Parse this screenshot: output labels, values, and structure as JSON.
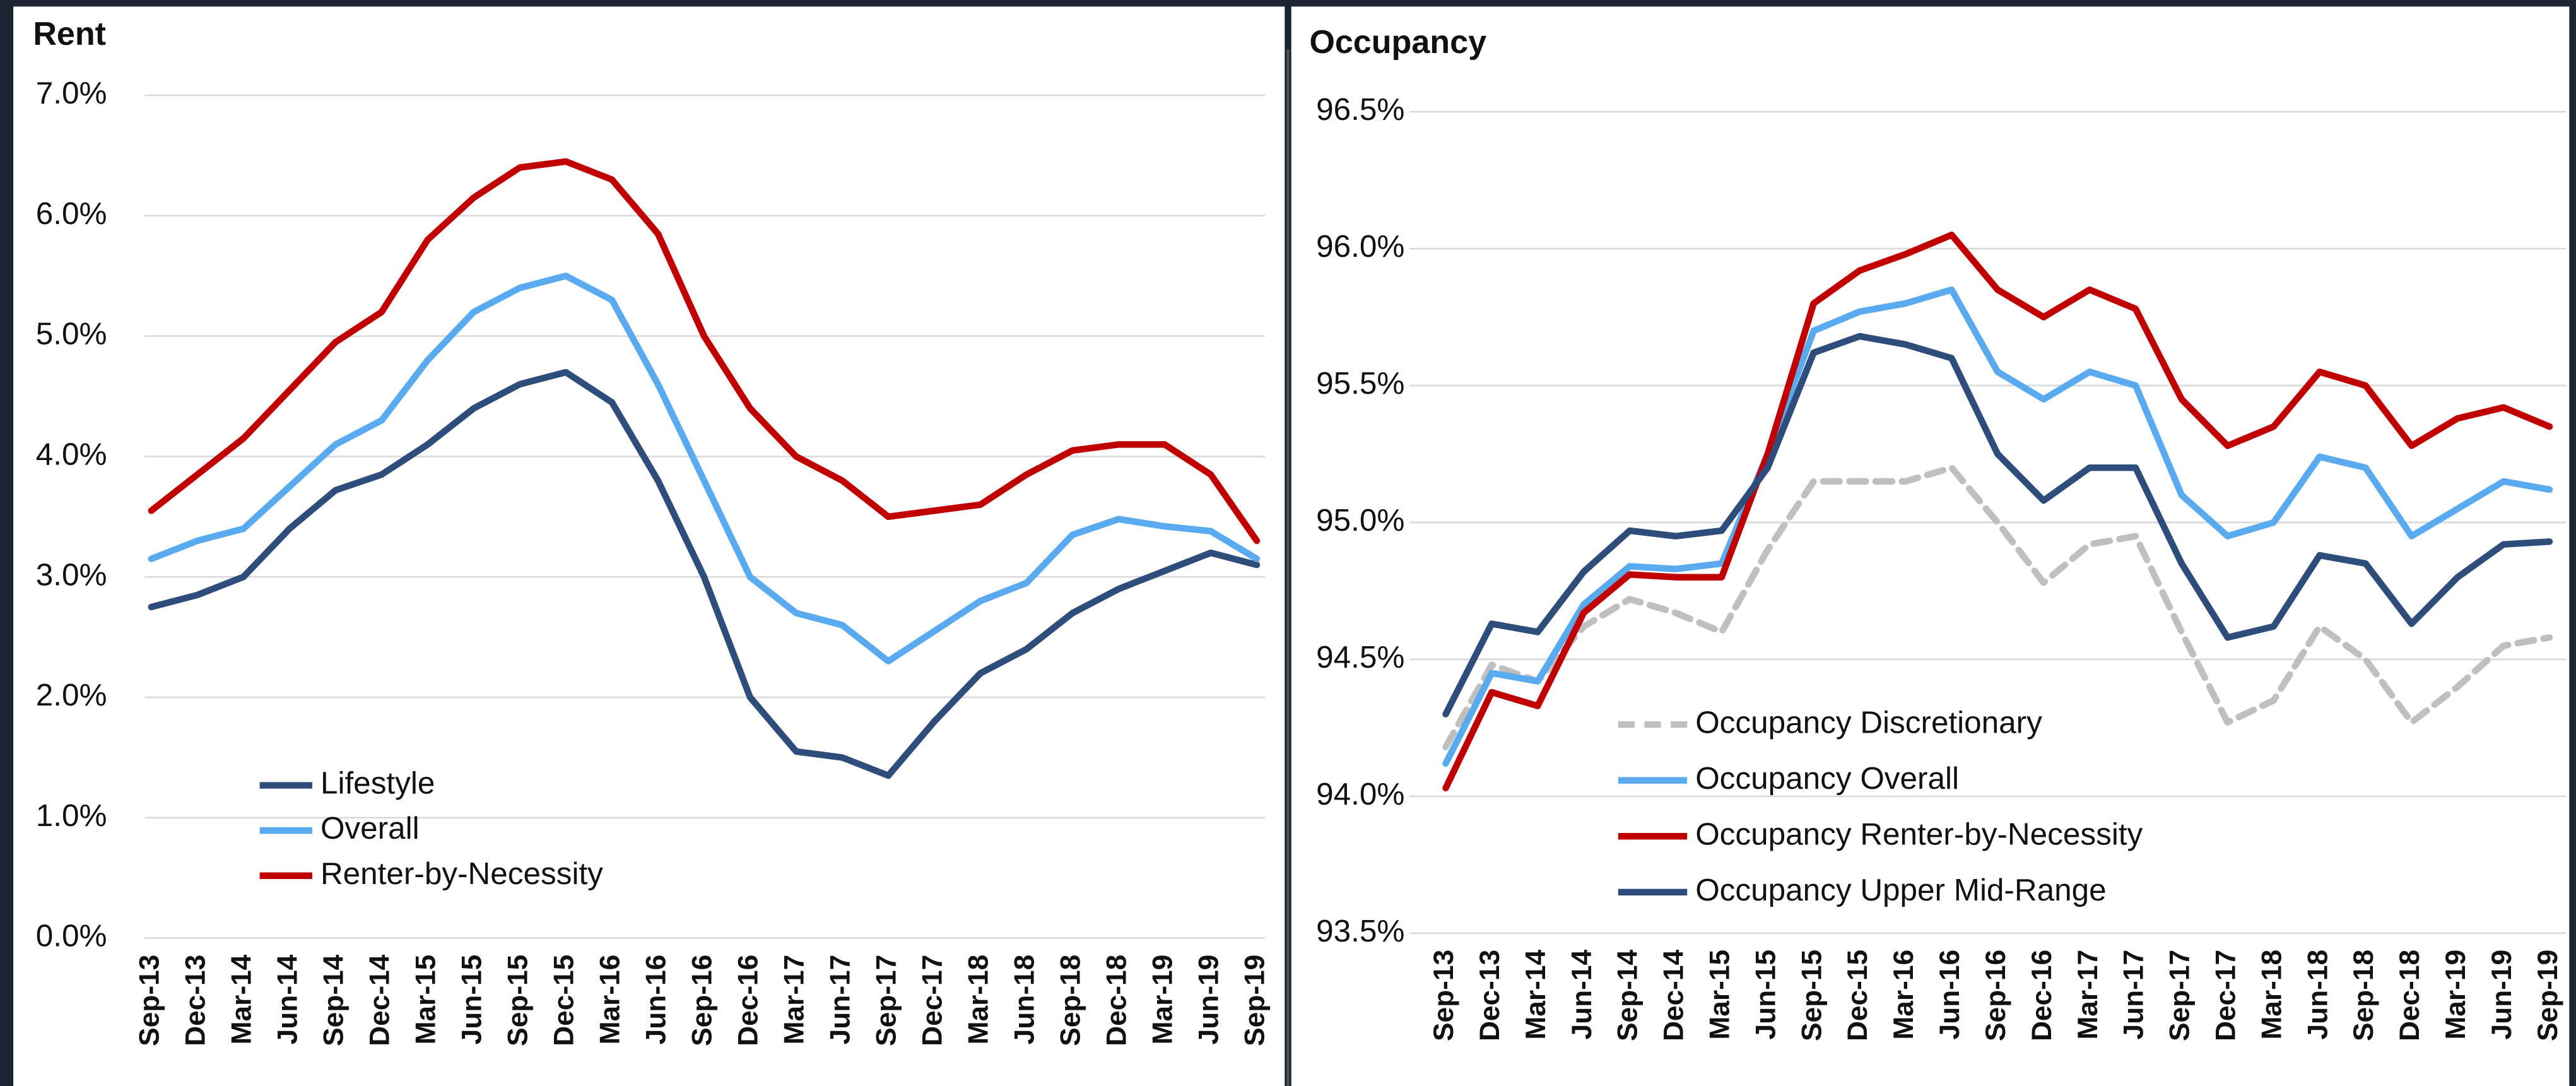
{
  "chart_data": [
    {
      "type": "line",
      "title": "Rent",
      "categories": [
        "Sep-13",
        "Dec-13",
        "Mar-14",
        "Jun-14",
        "Sep-14",
        "Dec-14",
        "Mar-15",
        "Jun-15",
        "Sep-15",
        "Dec-15",
        "Mar-16",
        "Jun-16",
        "Sep-16",
        "Dec-16",
        "Mar-17",
        "Jun-17",
        "Sep-17",
        "Dec-17",
        "Mar-18",
        "Jun-18",
        "Sep-18",
        "Dec-18",
        "Mar-19",
        "Jun-19",
        "Sep-19"
      ],
      "series": [
        {
          "name": "Lifestyle",
          "color": "#2e4d7b",
          "values": [
            2.75,
            2.85,
            3.0,
            3.4,
            3.72,
            3.85,
            4.1,
            4.4,
            4.6,
            4.7,
            4.45,
            3.8,
            3.0,
            2.0,
            1.55,
            1.5,
            1.35,
            1.8,
            2.2,
            2.4,
            2.7,
            2.9,
            3.05,
            3.2,
            3.1
          ]
        },
        {
          "name": "Overall",
          "color": "#5aaaf0",
          "values": [
            3.15,
            3.3,
            3.4,
            3.75,
            4.1,
            4.3,
            4.8,
            5.2,
            5.4,
            5.5,
            5.3,
            4.6,
            3.8,
            3.0,
            2.7,
            2.6,
            2.3,
            2.55,
            2.8,
            2.95,
            3.35,
            3.48,
            3.42,
            3.38,
            3.15
          ]
        },
        {
          "name": "Renter-by-Necessity",
          "color": "#c00000",
          "values": [
            3.55,
            3.85,
            4.15,
            4.55,
            4.95,
            5.2,
            5.8,
            6.15,
            6.4,
            6.45,
            6.3,
            5.85,
            5.0,
            4.4,
            4.0,
            3.8,
            3.5,
            3.55,
            3.6,
            3.85,
            4.05,
            4.1,
            4.1,
            3.85,
            3.3
          ]
        }
      ],
      "ylim": [
        0,
        7
      ],
      "yticks": [
        {
          "value": 0,
          "label": "0.0%"
        },
        {
          "value": 1,
          "label": "1.0%"
        },
        {
          "value": 2,
          "label": "2.0%"
        },
        {
          "value": 3,
          "label": "3.0%"
        },
        {
          "value": 4,
          "label": "4.0%"
        },
        {
          "value": 5,
          "label": "5.0%"
        },
        {
          "value": 6,
          "label": "6.0%"
        },
        {
          "value": 7,
          "label": "7.0%"
        }
      ],
      "grid": true,
      "legend": "lower left"
    },
    {
      "type": "line",
      "title": "Occupancy",
      "categories": [
        "Sep-13",
        "Dec-13",
        "Mar-14",
        "Jun-14",
        "Sep-14",
        "Dec-14",
        "Mar-15",
        "Jun-15",
        "Sep-15",
        "Dec-15",
        "Mar-16",
        "Jun-16",
        "Sep-16",
        "Dec-16",
        "Mar-17",
        "Jun-17",
        "Sep-17",
        "Dec-17",
        "Mar-18",
        "Jun-18",
        "Sep-18",
        "Dec-18",
        "Mar-19",
        "Jun-19",
        "Sep-19"
      ],
      "series": [
        {
          "name": "Occupancy Discretionary",
          "color": "#bfbfbf",
          "dashed": true,
          "values": [
            94.18,
            94.48,
            94.42,
            94.62,
            94.72,
            94.67,
            94.6,
            94.9,
            95.15,
            95.15,
            95.15,
            95.2,
            95.0,
            94.78,
            94.92,
            94.95,
            94.6,
            94.27,
            94.35,
            94.62,
            94.5,
            94.27,
            94.4,
            94.55,
            94.58
          ]
        },
        {
          "name": "Occupancy Overall",
          "color": "#5aaaf0",
          "values": [
            94.12,
            94.45,
            94.42,
            94.7,
            94.84,
            94.83,
            94.85,
            95.25,
            95.7,
            95.77,
            95.8,
            95.85,
            95.55,
            95.45,
            95.55,
            95.5,
            95.1,
            94.95,
            95.0,
            95.24,
            95.2,
            94.95,
            95.05,
            95.15,
            95.12
          ]
        },
        {
          "name": "Occupancy Renter-by-Necessity",
          "color": "#c00000",
          "values": [
            94.03,
            94.38,
            94.33,
            94.67,
            94.81,
            94.8,
            94.8,
            95.25,
            95.8,
            95.92,
            95.98,
            96.05,
            95.85,
            95.75,
            95.85,
            95.78,
            95.45,
            95.28,
            95.35,
            95.55,
            95.5,
            95.28,
            95.38,
            95.42,
            95.35
          ]
        },
        {
          "name": "Occupancy Upper Mid-Range",
          "color": "#2e4d7b",
          "values": [
            94.3,
            94.63,
            94.6,
            94.82,
            94.97,
            94.95,
            94.97,
            95.2,
            95.62,
            95.68,
            95.65,
            95.6,
            95.25,
            95.08,
            95.2,
            95.2,
            94.85,
            94.58,
            94.62,
            94.88,
            94.85,
            94.63,
            94.8,
            94.92,
            94.93
          ]
        }
      ],
      "ylim": [
        93.5,
        96.5
      ],
      "yticks": [
        {
          "value": 93.5,
          "label": "93.5%"
        },
        {
          "value": 94,
          "label": "94.0%"
        },
        {
          "value": 94.5,
          "label": "94.5%"
        },
        {
          "value": 95,
          "label": "95.0%"
        },
        {
          "value": 95.5,
          "label": "95.5%"
        },
        {
          "value": 96,
          "label": "96.0%"
        },
        {
          "value": 96.5,
          "label": "96.5%"
        }
      ],
      "grid": true,
      "legend": "lower left"
    }
  ]
}
